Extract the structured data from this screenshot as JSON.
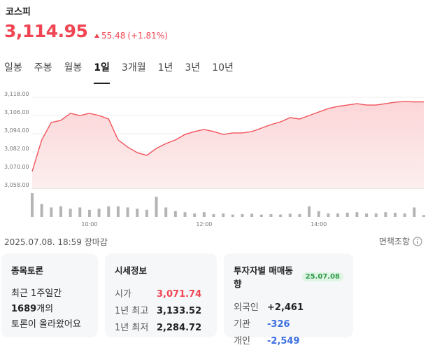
{
  "header": {
    "title": "코스피",
    "price": "3,114.95",
    "change": "55.48",
    "change_pct": "(+1.81%)"
  },
  "tabs": [
    "일봉",
    "주봉",
    "월봉",
    "1일",
    "3개월",
    "1년",
    "3년",
    "10년"
  ],
  "active_tab": 3,
  "chart_data": [
    {
      "type": "area",
      "color": "#f0545c",
      "x": [
        "09:00",
        "09:10",
        "09:20",
        "09:30",
        "09:40",
        "09:50",
        "10:00",
        "10:10",
        "10:20",
        "10:30",
        "10:40",
        "10:50",
        "11:00",
        "11:10",
        "11:20",
        "11:30",
        "11:40",
        "11:50",
        "12:00",
        "12:10",
        "12:20",
        "12:30",
        "12:40",
        "12:50",
        "13:00",
        "13:10",
        "13:20",
        "13:30",
        "13:40",
        "13:50",
        "14:00",
        "14:10",
        "14:20",
        "14:30",
        "14:40",
        "14:50",
        "15:00",
        "15:10",
        "15:20",
        "15:30",
        "15:40",
        "15:50"
      ],
      "values": [
        3069.1,
        3089.9,
        3101.4,
        3102.8,
        3107.4,
        3106.0,
        3107.4,
        3106.0,
        3103.7,
        3089.9,
        3085.2,
        3081.5,
        3079.7,
        3084.3,
        3087.5,
        3089.9,
        3093.5,
        3095.4,
        3096.8,
        3095.4,
        3093.5,
        3094.5,
        3094.5,
        3095.4,
        3097.7,
        3100.0,
        3101.8,
        3104.6,
        3103.7,
        3106.0,
        3108.3,
        3110.6,
        3112.0,
        3112.9,
        3113.8,
        3112.9,
        3112.9,
        3113.8,
        3114.8,
        3115.2,
        3115.0,
        3115.0
      ],
      "xlim": [
        "09:00",
        "15:50"
      ],
      "xticks": [
        "10:00",
        "12:00",
        "14:00"
      ],
      "ylim": [
        3058,
        3118
      ],
      "yticks": [
        {
          "value": 3058,
          "label": "3,058.00"
        },
        {
          "value": 3070,
          "label": "3,070.00"
        },
        {
          "value": 3082,
          "label": "3,082.00"
        },
        {
          "value": 3094,
          "label": "3,094.00"
        },
        {
          "value": 3106,
          "label": "3,106.00"
        },
        {
          "value": 3118,
          "label": "3,118.00"
        }
      ],
      "grid": true
    },
    {
      "type": "bar",
      "color": "#b4b4b4",
      "ylim": [
        0,
        100
      ],
      "values": [
        100,
        55,
        40,
        45,
        35,
        40,
        30,
        35,
        45,
        45,
        40,
        35,
        30,
        85,
        40,
        25,
        20,
        15,
        20,
        12,
        15,
        10,
        12,
        14,
        10,
        12,
        10,
        14,
        12,
        45,
        25,
        15,
        15,
        18,
        20,
        15,
        15,
        20,
        18,
        15,
        40,
        8
      ]
    }
  ],
  "timestamp": "2025.07.08. 18:59 장마감",
  "disclaimer": "면책조항",
  "discussion": {
    "title": "종목토론",
    "line1": "최근 1주일간",
    "count": "1689",
    "count_suffix": "개의",
    "line3": "토론이 올라왔어요"
  },
  "quote": {
    "title": "시세정보",
    "rows": [
      [
        "시가",
        "3,071.74"
      ],
      [
        "1년 최고",
        "3,133.52"
      ],
      [
        "1년 최저",
        "2,284.72"
      ]
    ]
  },
  "investors": {
    "title": "투자자별 매매동향",
    "date": "25.07.08",
    "rows": [
      [
        "외국인",
        "+2,461"
      ],
      [
        "기관",
        "-326"
      ],
      [
        "개인",
        "-2,549"
      ]
    ]
  }
}
